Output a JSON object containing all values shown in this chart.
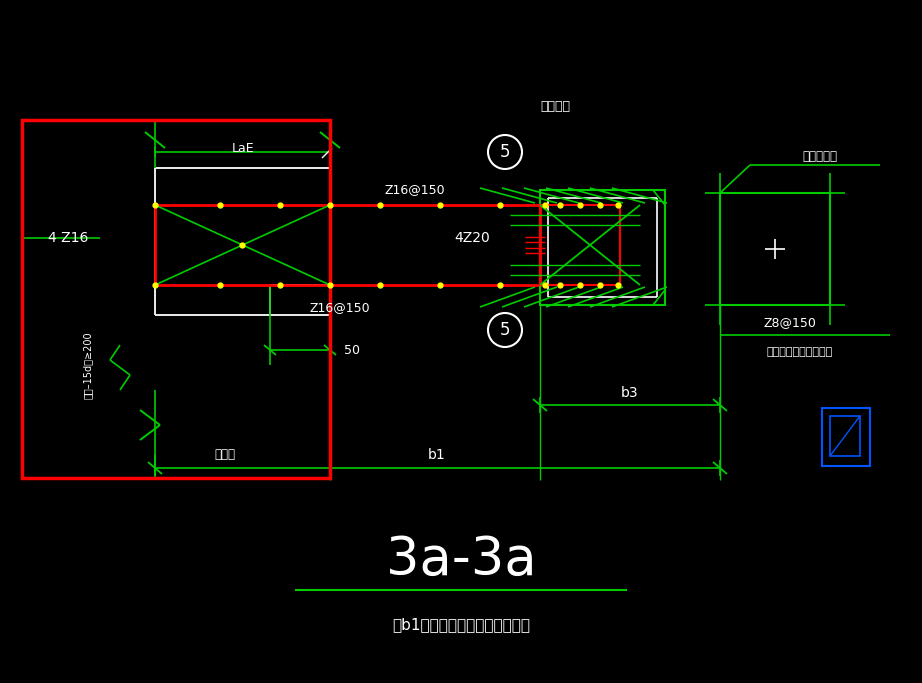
{
  "bg_color": "#000000",
  "green": "#00CC00",
  "red": "#FF0000",
  "white": "#FFFFFF",
  "yellow": "#FFFF00",
  "blue_col": "#0055FF",
  "title": "3a-3a",
  "note": "注b1值以人防区内之侧墙厚为准",
  "label_LaE": "LaE",
  "label_4phi16": "4 Ζ16",
  "label_4phi20": "4Ζ20",
  "label_phi16_150_top": "Ζ16@150",
  "label_phi16_150_bot": "Ζ16@150",
  "label_phi8_150": "Ζ8@150",
  "label_renfang": "人防区外",
  "label_preburied": "预埋钉门框",
  "label_bottom_note": "底板面至顶板底范围内",
  "label_b1": "b1",
  "label_b3": "b3",
  "label_side_wall": "侧墙厂",
  "label_50": "50",
  "label_stirrup": "箋箋–15d且≥200",
  "label_circle5": "5"
}
